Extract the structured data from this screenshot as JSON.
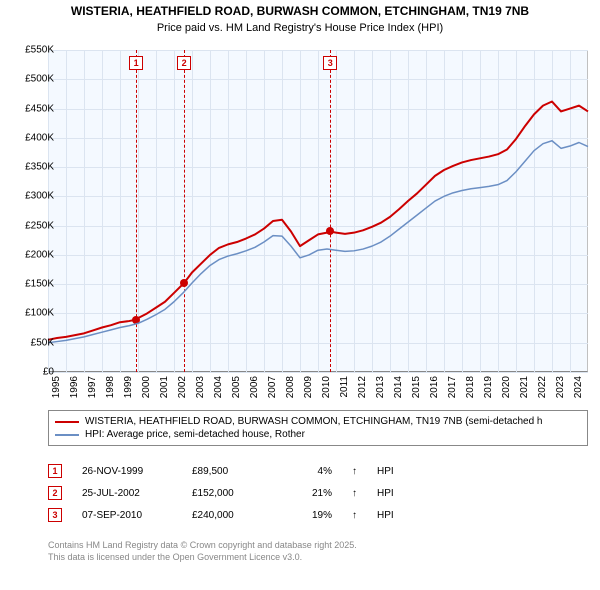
{
  "title_line1": "WISTERIA, HEATHFIELD ROAD, BURWASH COMMON, ETCHINGHAM, TN19 7NB",
  "title_line2": "Price paid vs. HM Land Registry's House Price Index (HPI)",
  "chart": {
    "type": "line",
    "background_color": "#f4f9ff",
    "grid_color": "#dbe4f0",
    "border_color": "#888888",
    "x_start_year": 1995,
    "x_end_year": 2025,
    "x_ticks": [
      1995,
      1996,
      1997,
      1998,
      1999,
      2000,
      2001,
      2002,
      2003,
      2004,
      2005,
      2006,
      2007,
      2008,
      2009,
      2010,
      2011,
      2012,
      2013,
      2014,
      2015,
      2016,
      2017,
      2018,
      2019,
      2020,
      2021,
      2022,
      2023,
      2024
    ],
    "y_min": 0,
    "y_max": 550,
    "y_ticks": [
      0,
      50,
      100,
      150,
      200,
      250,
      300,
      350,
      400,
      450,
      500,
      550
    ],
    "y_tick_labels": [
      "£0",
      "£50K",
      "£100K",
      "£150K",
      "£200K",
      "£250K",
      "£300K",
      "£350K",
      "£400K",
      "£450K",
      "£500K",
      "£550K"
    ],
    "series": [
      {
        "name": "WISTERIA, HEATHFIELD ROAD, BURWASH COMMON, ETCHINGHAM, TN19 7NB (semi-detached h",
        "color": "#cc0000",
        "width": 2,
        "data": [
          [
            1995,
            55
          ],
          [
            1995.5,
            58
          ],
          [
            1996,
            60
          ],
          [
            1996.5,
            63
          ],
          [
            1997,
            66
          ],
          [
            1997.5,
            71
          ],
          [
            1998,
            76
          ],
          [
            1998.5,
            80
          ],
          [
            1999,
            85
          ],
          [
            1999.5,
            87
          ],
          [
            1999.9,
            89.5
          ],
          [
            2000,
            92
          ],
          [
            2000.5,
            100
          ],
          [
            2001,
            110
          ],
          [
            2001.5,
            120
          ],
          [
            2002,
            135
          ],
          [
            2002.56,
            152
          ],
          [
            2003,
            170
          ],
          [
            2003.5,
            185
          ],
          [
            2004,
            200
          ],
          [
            2004.5,
            212
          ],
          [
            2005,
            218
          ],
          [
            2005.5,
            222
          ],
          [
            2006,
            228
          ],
          [
            2006.5,
            235
          ],
          [
            2007,
            245
          ],
          [
            2007.5,
            258
          ],
          [
            2008,
            260
          ],
          [
            2008.5,
            240
          ],
          [
            2009,
            215
          ],
          [
            2009.5,
            225
          ],
          [
            2010,
            235
          ],
          [
            2010.5,
            238
          ],
          [
            2010.68,
            240
          ],
          [
            2011,
            238
          ],
          [
            2011.5,
            236
          ],
          [
            2012,
            238
          ],
          [
            2012.5,
            242
          ],
          [
            2013,
            248
          ],
          [
            2013.5,
            255
          ],
          [
            2014,
            265
          ],
          [
            2014.5,
            278
          ],
          [
            2015,
            292
          ],
          [
            2015.5,
            305
          ],
          [
            2016,
            320
          ],
          [
            2016.5,
            335
          ],
          [
            2017,
            345
          ],
          [
            2017.5,
            352
          ],
          [
            2018,
            358
          ],
          [
            2018.5,
            362
          ],
          [
            2019,
            365
          ],
          [
            2019.5,
            368
          ],
          [
            2020,
            372
          ],
          [
            2020.5,
            380
          ],
          [
            2021,
            398
          ],
          [
            2021.5,
            420
          ],
          [
            2022,
            440
          ],
          [
            2022.5,
            455
          ],
          [
            2023,
            462
          ],
          [
            2023.5,
            445
          ],
          [
            2024,
            450
          ],
          [
            2024.5,
            455
          ],
          [
            2025,
            445
          ]
        ]
      },
      {
        "name": "HPI: Average price, semi-detached house, Rother",
        "color": "#6b8fc4",
        "width": 1.5,
        "data": [
          [
            1995,
            50
          ],
          [
            1995.5,
            52
          ],
          [
            1996,
            54
          ],
          [
            1996.5,
            57
          ],
          [
            1997,
            60
          ],
          [
            1997.5,
            64
          ],
          [
            1998,
            68
          ],
          [
            1998.5,
            72
          ],
          [
            1999,
            76
          ],
          [
            1999.5,
            79
          ],
          [
            2000,
            83
          ],
          [
            2000.5,
            90
          ],
          [
            2001,
            98
          ],
          [
            2001.5,
            107
          ],
          [
            2002,
            120
          ],
          [
            2002.5,
            135
          ],
          [
            2003,
            152
          ],
          [
            2003.5,
            168
          ],
          [
            2004,
            182
          ],
          [
            2004.5,
            192
          ],
          [
            2005,
            198
          ],
          [
            2005.5,
            202
          ],
          [
            2006,
            207
          ],
          [
            2006.5,
            213
          ],
          [
            2007,
            222
          ],
          [
            2007.5,
            233
          ],
          [
            2008,
            232
          ],
          [
            2008.5,
            215
          ],
          [
            2009,
            195
          ],
          [
            2009.5,
            200
          ],
          [
            2010,
            208
          ],
          [
            2010.5,
            210
          ],
          [
            2011,
            208
          ],
          [
            2011.5,
            206
          ],
          [
            2012,
            207
          ],
          [
            2012.5,
            210
          ],
          [
            2013,
            215
          ],
          [
            2013.5,
            222
          ],
          [
            2014,
            232
          ],
          [
            2014.5,
            244
          ],
          [
            2015,
            256
          ],
          [
            2015.5,
            268
          ],
          [
            2016,
            280
          ],
          [
            2016.5,
            292
          ],
          [
            2017,
            300
          ],
          [
            2017.5,
            306
          ],
          [
            2018,
            310
          ],
          [
            2018.5,
            313
          ],
          [
            2019,
            315
          ],
          [
            2019.5,
            317
          ],
          [
            2020,
            320
          ],
          [
            2020.5,
            327
          ],
          [
            2021,
            342
          ],
          [
            2021.5,
            360
          ],
          [
            2022,
            378
          ],
          [
            2022.5,
            390
          ],
          [
            2023,
            395
          ],
          [
            2023.5,
            382
          ],
          [
            2024,
            386
          ],
          [
            2024.5,
            392
          ],
          [
            2025,
            385
          ]
        ]
      }
    ],
    "markers": [
      {
        "n": "1",
        "year": 1999.9,
        "value": 89.5
      },
      {
        "n": "2",
        "year": 2002.56,
        "value": 152
      },
      {
        "n": "3",
        "year": 2010.68,
        "value": 240
      }
    ]
  },
  "legend": {
    "items": [
      {
        "color": "#cc0000",
        "label": "WISTERIA, HEATHFIELD ROAD, BURWASH COMMON, ETCHINGHAM, TN19 7NB (semi-detached h"
      },
      {
        "color": "#6b8fc4",
        "label": "HPI: Average price, semi-detached house, Rother"
      }
    ]
  },
  "transactions": [
    {
      "n": "1",
      "date": "26-NOV-1999",
      "price": "£89,500",
      "pct": "4%",
      "arrow": "↑",
      "suffix": "HPI"
    },
    {
      "n": "2",
      "date": "25-JUL-2002",
      "price": "£152,000",
      "pct": "21%",
      "arrow": "↑",
      "suffix": "HPI"
    },
    {
      "n": "3",
      "date": "07-SEP-2010",
      "price": "£240,000",
      "pct": "19%",
      "arrow": "↑",
      "suffix": "HPI"
    }
  ],
  "footer_line1": "Contains HM Land Registry data © Crown copyright and database right 2025.",
  "footer_line2": "This data is licensed under the Open Government Licence v3.0."
}
